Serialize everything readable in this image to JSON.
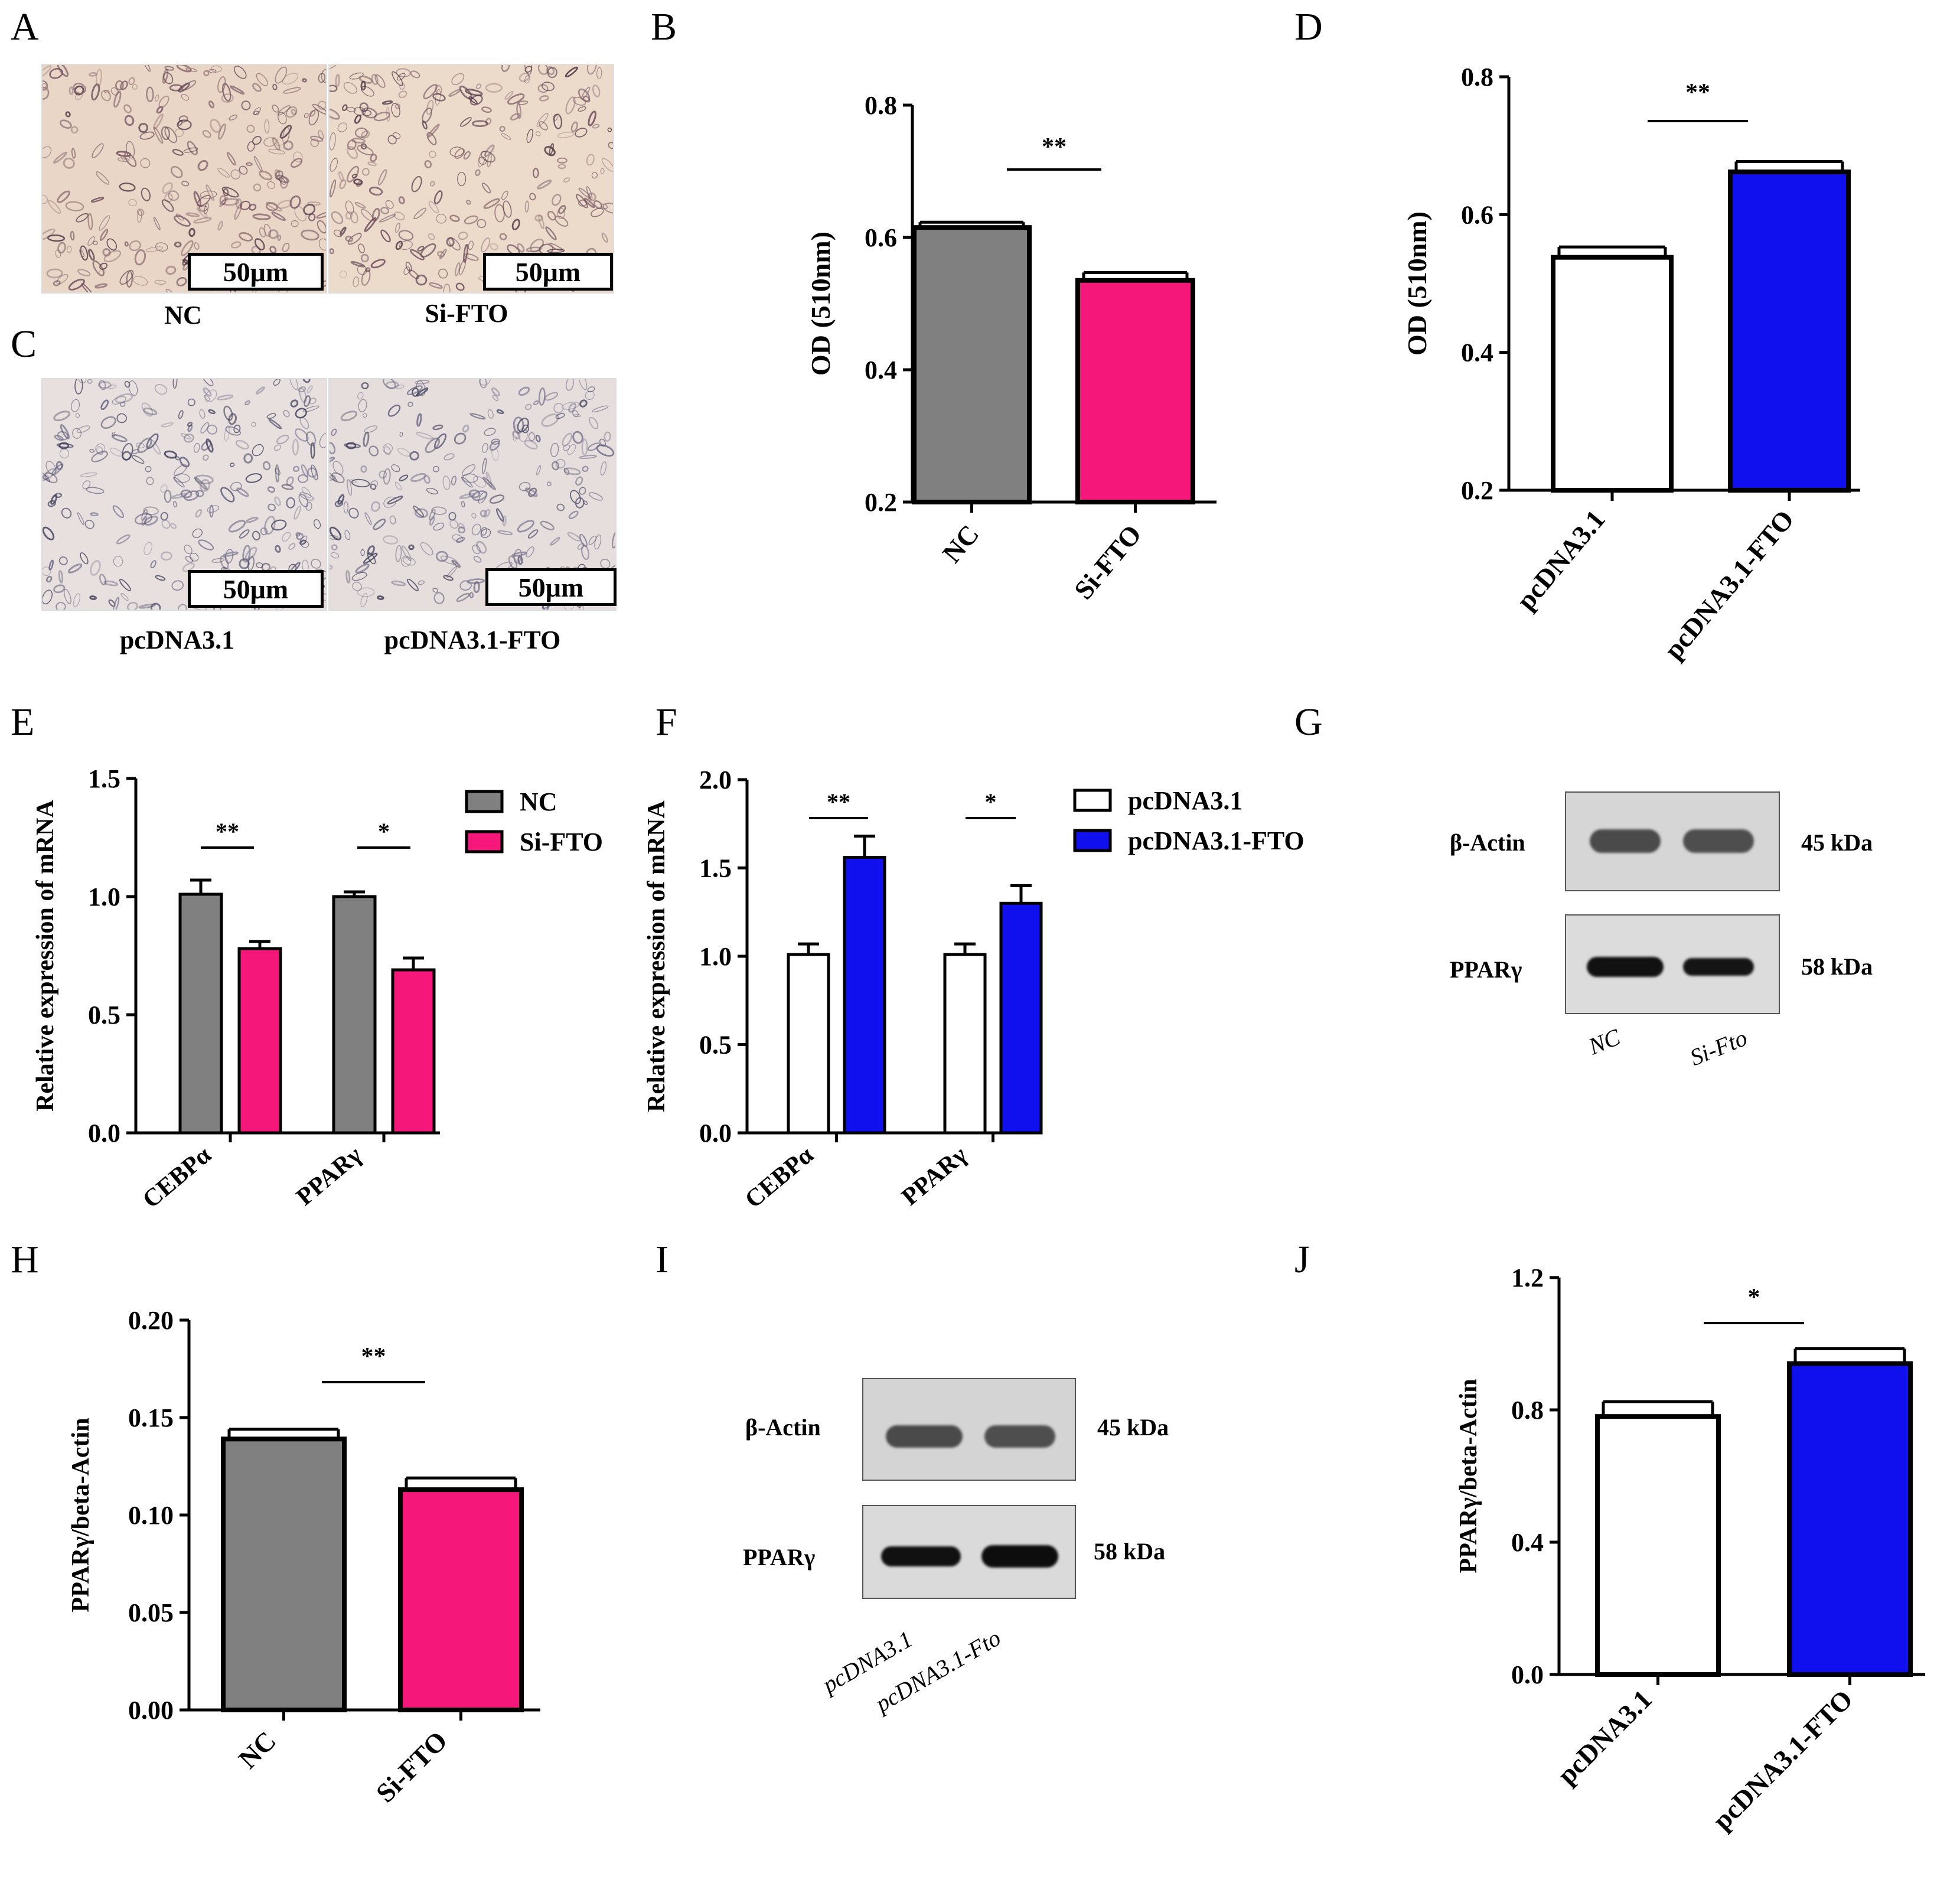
{
  "panels": {
    "A": "A",
    "B": "B",
    "C": "C",
    "D": "D",
    "E": "E",
    "F": "F",
    "G": "G",
    "H": "H",
    "I": "I",
    "J": "J"
  },
  "micrographs": {
    "A_left": {
      "scale": "50μm",
      "caption": "NC"
    },
    "A_right": {
      "scale": "50μm",
      "caption": "Si-FTO"
    },
    "C_left": {
      "scale": "50μm",
      "caption": "pcDNA3.1"
    },
    "C_right": {
      "scale": "50μm",
      "caption": "pcDNA3.1-FTO"
    }
  },
  "colors": {
    "gray": "#808080",
    "pink": "#f5177a",
    "white": "#ffffff",
    "blue": "#1010ee"
  },
  "blots": {
    "G": {
      "actin_label": "β-Actin",
      "ppar_label": "PPARγ",
      "actin_kda": "45 kDa",
      "ppar_kda": "58 kDa",
      "lane1": "NC",
      "lane2": "Si-Fto"
    },
    "I": {
      "actin_label": "β-Actin",
      "ppar_label": "PPARγ",
      "actin_kda": "45 kDa",
      "ppar_kda": "58 kDa",
      "lane1": "pcDNA3.1",
      "lane2": "pcDNA3.1-Fto"
    }
  },
  "chart_data": [
    {
      "id": "B",
      "type": "bar",
      "ylabel": "OD (510nm)",
      "categories": [
        "NC",
        "Si-FTO"
      ],
      "values": [
        0.615,
        0.535
      ],
      "errors": [
        0.008,
        0.012
      ],
      "colors": [
        "#808080",
        "#f5177a"
      ],
      "ylim": [
        0.2,
        0.8
      ],
      "yticks": [
        0.2,
        0.4,
        0.6,
        0.8
      ],
      "tick_labels": [
        "0.2",
        "0.4",
        "0.6",
        "0.8"
      ],
      "significance": "**"
    },
    {
      "id": "D",
      "type": "bar",
      "ylabel": "OD (510nm)",
      "categories": [
        "pcDNA3.1",
        "pcDNA3.1-FTO"
      ],
      "values": [
        0.538,
        0.662
      ],
      "errors": [
        0.015,
        0.015
      ],
      "colors": [
        "#ffffff",
        "#1010ee"
      ],
      "ylim": [
        0.2,
        0.8
      ],
      "yticks": [
        0.2,
        0.4,
        0.6,
        0.8
      ],
      "tick_labels": [
        "0.2",
        "0.4",
        "0.6",
        "0.8"
      ],
      "significance": "**"
    },
    {
      "id": "E",
      "type": "bar",
      "ylabel": "Relative expression of mRNA",
      "categories": [
        "CEBPα",
        "PPARγ"
      ],
      "series": [
        {
          "name": "NC",
          "values": [
            1.01,
            1.0
          ],
          "errors": [
            0.06,
            0.02
          ],
          "color": "#808080"
        },
        {
          "name": "Si-FTO",
          "values": [
            0.78,
            0.69
          ],
          "errors": [
            0.03,
            0.05
          ],
          "color": "#f5177a"
        }
      ],
      "ylim": [
        0,
        1.5
      ],
      "yticks": [
        0,
        0.5,
        1.0,
        1.5
      ],
      "tick_labels": [
        "0.0",
        "0.5",
        "1.0",
        "1.5"
      ],
      "significance": [
        "**",
        "*"
      ],
      "legend": "top-right"
    },
    {
      "id": "F",
      "type": "bar",
      "ylabel": "Relative expression of mRNA",
      "categories": [
        "CEBPα",
        "PPARγ"
      ],
      "series": [
        {
          "name": "pcDNA3.1",
          "values": [
            1.01,
            1.01
          ],
          "errors": [
            0.06,
            0.06
          ],
          "color": "#ffffff"
        },
        {
          "name": "pcDNA3.1-FTO",
          "values": [
            1.56,
            1.3
          ],
          "errors": [
            0.12,
            0.1
          ],
          "color": "#1010ee"
        }
      ],
      "ylim": [
        0,
        2.0
      ],
      "yticks": [
        0,
        0.5,
        1.0,
        1.5,
        2.0
      ],
      "tick_labels": [
        "0.0",
        "0.5",
        "1.0",
        "1.5",
        "2.0"
      ],
      "significance": [
        "**",
        "*"
      ],
      "legend": "top-right"
    },
    {
      "id": "H",
      "type": "bar",
      "ylabel": "PPARγ/beta-Actin",
      "categories": [
        "NC",
        "Si-FTO"
      ],
      "values": [
        0.139,
        0.113
      ],
      "errors": [
        0.005,
        0.006
      ],
      "colors": [
        "#808080",
        "#f5177a"
      ],
      "ylim": [
        0,
        0.2
      ],
      "yticks": [
        0,
        0.05,
        0.1,
        0.15,
        0.2
      ],
      "tick_labels": [
        "0.00",
        "0.05",
        "0.10",
        "0.15",
        "0.20"
      ],
      "significance": "**"
    },
    {
      "id": "J",
      "type": "bar",
      "ylabel": "PPARγ/beta-Actin",
      "categories": [
        "pcDNA3.1",
        "pcDNA3.1-FTO"
      ],
      "values": [
        0.78,
        0.94
      ],
      "errors": [
        0.045,
        0.045
      ],
      "colors": [
        "#ffffff",
        "#1010ee"
      ],
      "ylim": [
        0,
        1.2
      ],
      "yticks": [
        0,
        0.4,
        0.8,
        1.2
      ],
      "tick_labels": [
        "0.0",
        "0.4",
        "0.8",
        "1.2"
      ],
      "significance": "*"
    }
  ]
}
